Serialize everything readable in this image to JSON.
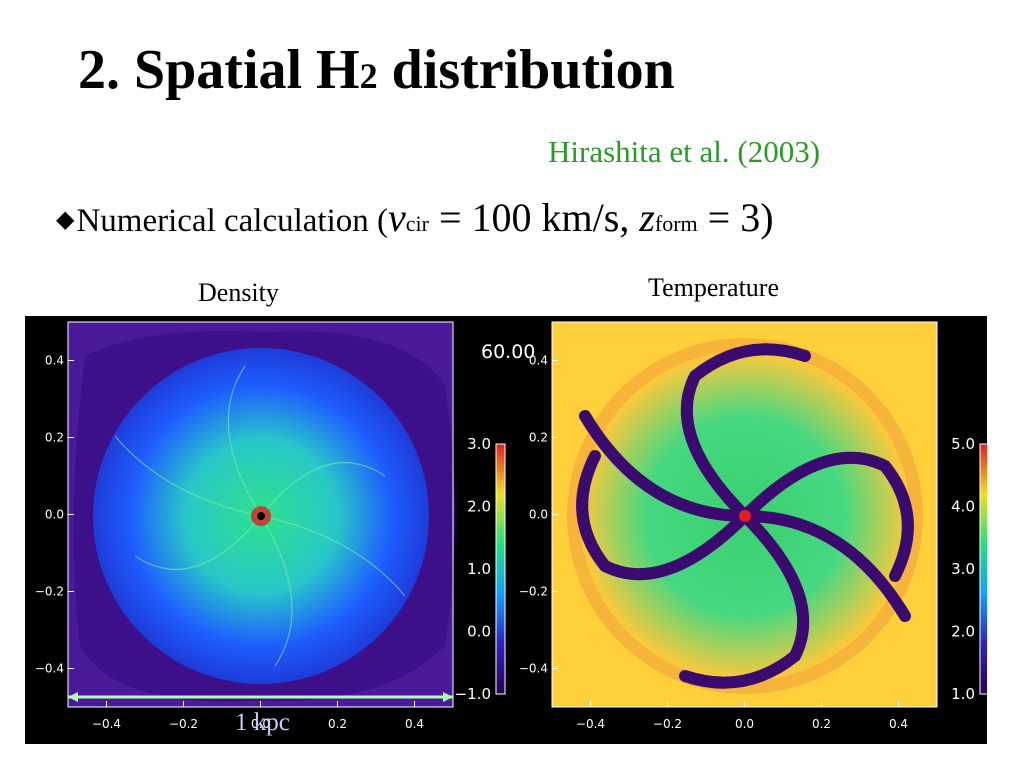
{
  "slide": {
    "title_main": "2. Spatial H",
    "title_sub": "2",
    "title_rest": " distribution",
    "citation": "Hirashita et al. (2003)",
    "bullet": {
      "marker": "◆",
      "text": "Numerical calculation (",
      "v_symbol": "v",
      "v_sub": "cir",
      "eq1": " = 100 km/s, ",
      "z_symbol": "z",
      "z_sub": "form",
      "eq2": " = 3)"
    },
    "density_label": "Density",
    "temperature_label": "Temperature"
  },
  "figure": {
    "time_label": "60.00",
    "scale_label": "1 kpc",
    "axis_ticks_x": [
      "−0.4",
      "−0.2",
      "0.0",
      "0.2",
      "0.4"
    ],
    "axis_ticks_y": [
      "0.4",
      "0.2",
      "0.0",
      "−0.2",
      "−0.4"
    ],
    "density_colorbar_ticks": [
      "3.0",
      "2.0",
      "1.0",
      "0.0",
      "−1.0"
    ],
    "temperature_colorbar_ticks": [
      "5.0",
      "4.0",
      "3.0",
      "2.0",
      "1.0"
    ],
    "colors": {
      "background": "#000000",
      "density_bg": "#4a1a9a",
      "density_disk": "#1e5cff",
      "density_clumps": "#2ee08c",
      "temp_bg": "#ffd03a",
      "temp_arms": "#2ad07a",
      "temp_voids": "#3b0a6e",
      "accent_red": "#e02020",
      "scale_bar": "#b0ffb0"
    }
  }
}
